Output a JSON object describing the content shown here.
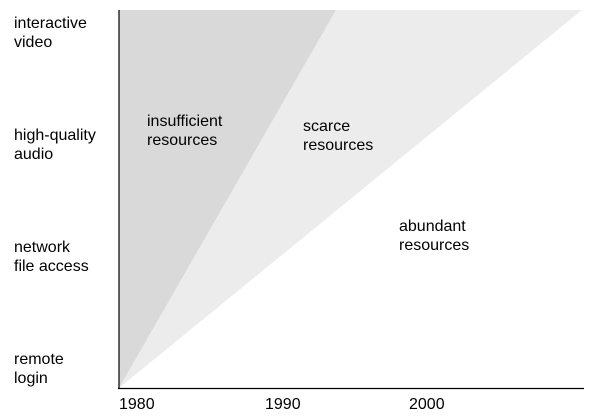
{
  "diagram": {
    "y_categories": [
      "interactive\nvideo",
      "high-quality\naudio",
      "network\nfile access",
      "remote\nlogin"
    ],
    "x_ticks": [
      "1980",
      "1990",
      "2000"
    ],
    "regions": [
      {
        "label": "insufficient\nresources",
        "fill": "#d9d9d9"
      },
      {
        "label": "scarce\nresources",
        "fill": "#ececec"
      },
      {
        "label": "abundant\nresources",
        "fill": "#ffffff"
      }
    ],
    "axis_color": "#000000"
  }
}
